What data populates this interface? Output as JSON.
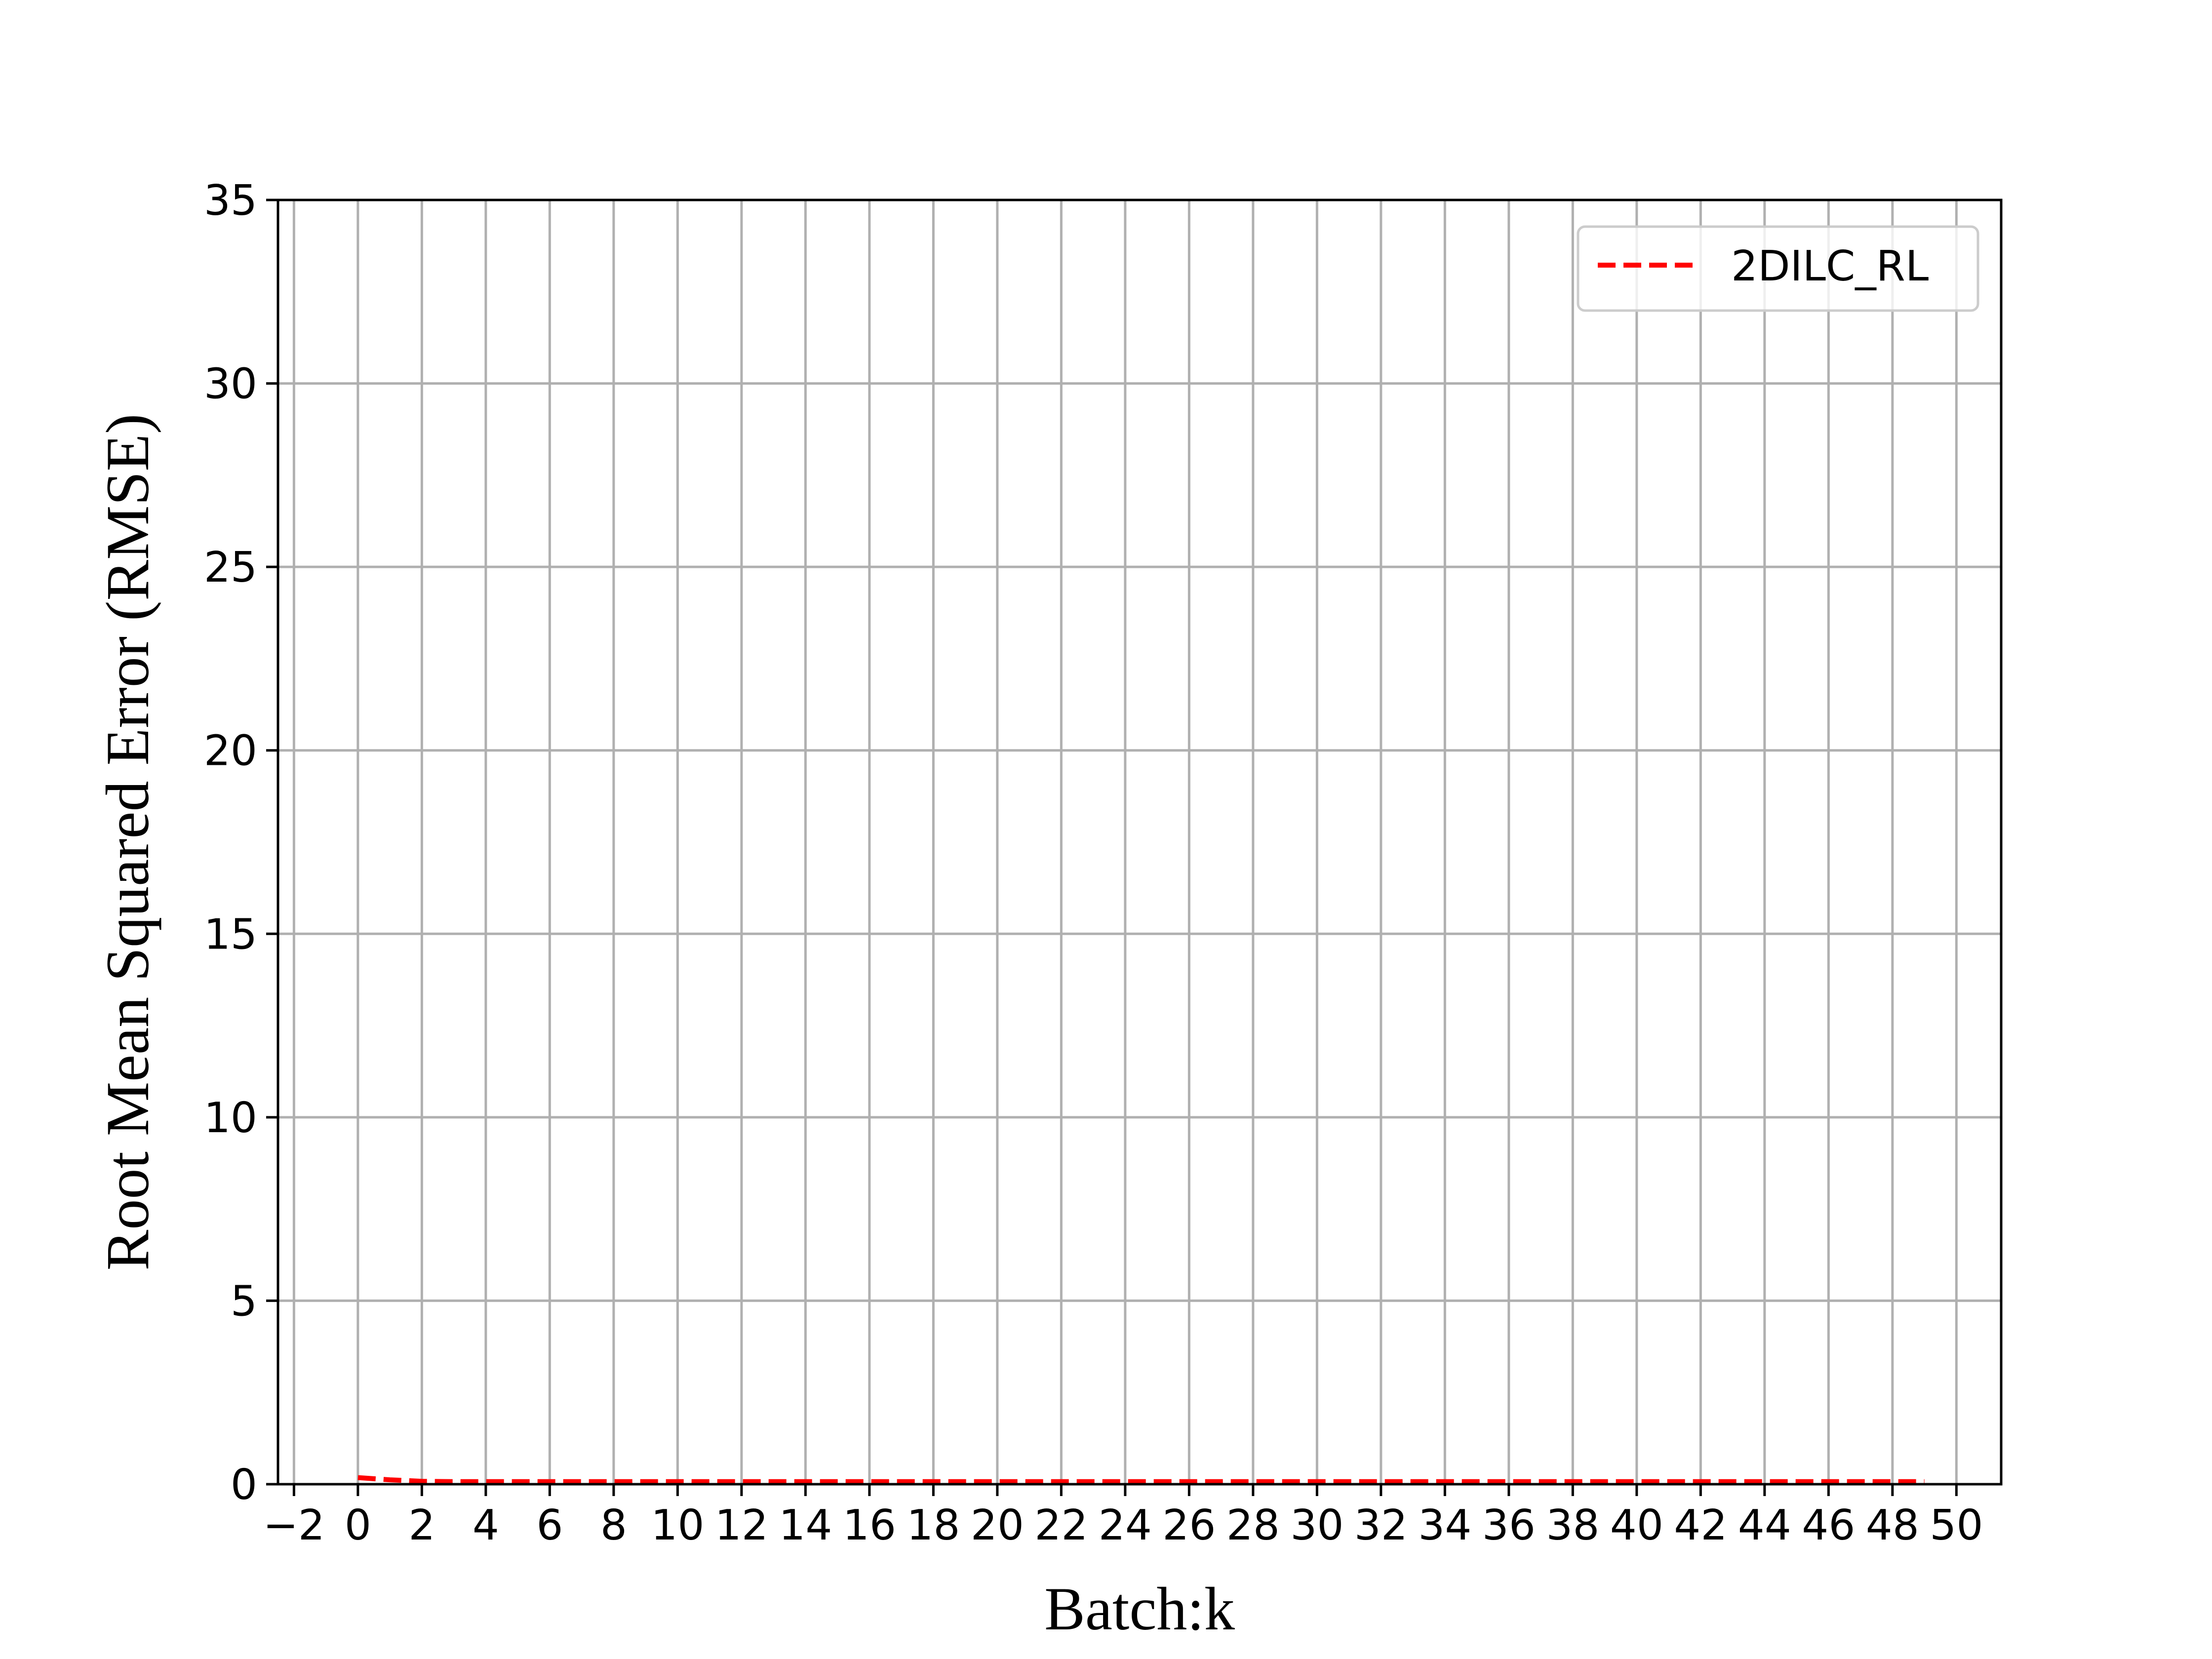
{
  "chart_data": {
    "type": "line",
    "title": "",
    "xlabel": "Batch:k",
    "ylabel": "Root Mean Squared Error (RMSE)",
    "xlim": [
      -2.5,
      51.4
    ],
    "ylim": [
      0,
      35
    ],
    "x_ticks": [
      -2,
      0,
      2,
      4,
      6,
      8,
      10,
      12,
      14,
      16,
      18,
      20,
      22,
      24,
      26,
      28,
      30,
      32,
      34,
      36,
      38,
      40,
      42,
      44,
      46,
      48,
      50
    ],
    "x_tick_labels": [
      "−2",
      "0",
      "2",
      "4",
      "6",
      "8",
      "10",
      "12",
      "14",
      "16",
      "18",
      "20",
      "22",
      "24",
      "26",
      "28",
      "30",
      "32",
      "34",
      "36",
      "38",
      "40",
      "42",
      "44",
      "46",
      "48",
      "50"
    ],
    "y_ticks": [
      0,
      5,
      10,
      15,
      20,
      25,
      30,
      35
    ],
    "y_tick_labels": [
      "0",
      "5",
      "10",
      "15",
      "20",
      "25",
      "30",
      "35"
    ],
    "grid": true,
    "legend_position": "top-right",
    "series": [
      {
        "name": "2DILC_RL",
        "color": "#ff0000",
        "line_style": "dashed",
        "x": [
          0,
          1,
          2,
          3,
          4,
          5,
          6,
          7,
          8,
          9,
          10,
          11,
          12,
          13,
          14,
          15,
          16,
          17,
          18,
          19,
          20,
          21,
          22,
          23,
          24,
          25,
          26,
          27,
          28,
          29,
          30,
          31,
          32,
          33,
          34,
          35,
          36,
          37,
          38,
          39,
          40,
          41,
          42,
          43,
          44,
          45,
          46,
          47,
          48,
          49
        ],
        "y": [
          0.18,
          0.12,
          0.08,
          0.07,
          0.07,
          0.07,
          0.07,
          0.07,
          0.07,
          0.07,
          0.07,
          0.07,
          0.07,
          0.07,
          0.07,
          0.07,
          0.07,
          0.07,
          0.07,
          0.07,
          0.07,
          0.07,
          0.07,
          0.07,
          0.07,
          0.07,
          0.07,
          0.07,
          0.07,
          0.07,
          0.07,
          0.07,
          0.07,
          0.07,
          0.07,
          0.07,
          0.07,
          0.07,
          0.07,
          0.07,
          0.07,
          0.07,
          0.07,
          0.07,
          0.07,
          0.07,
          0.07,
          0.07,
          0.07,
          0.07
        ]
      }
    ]
  }
}
